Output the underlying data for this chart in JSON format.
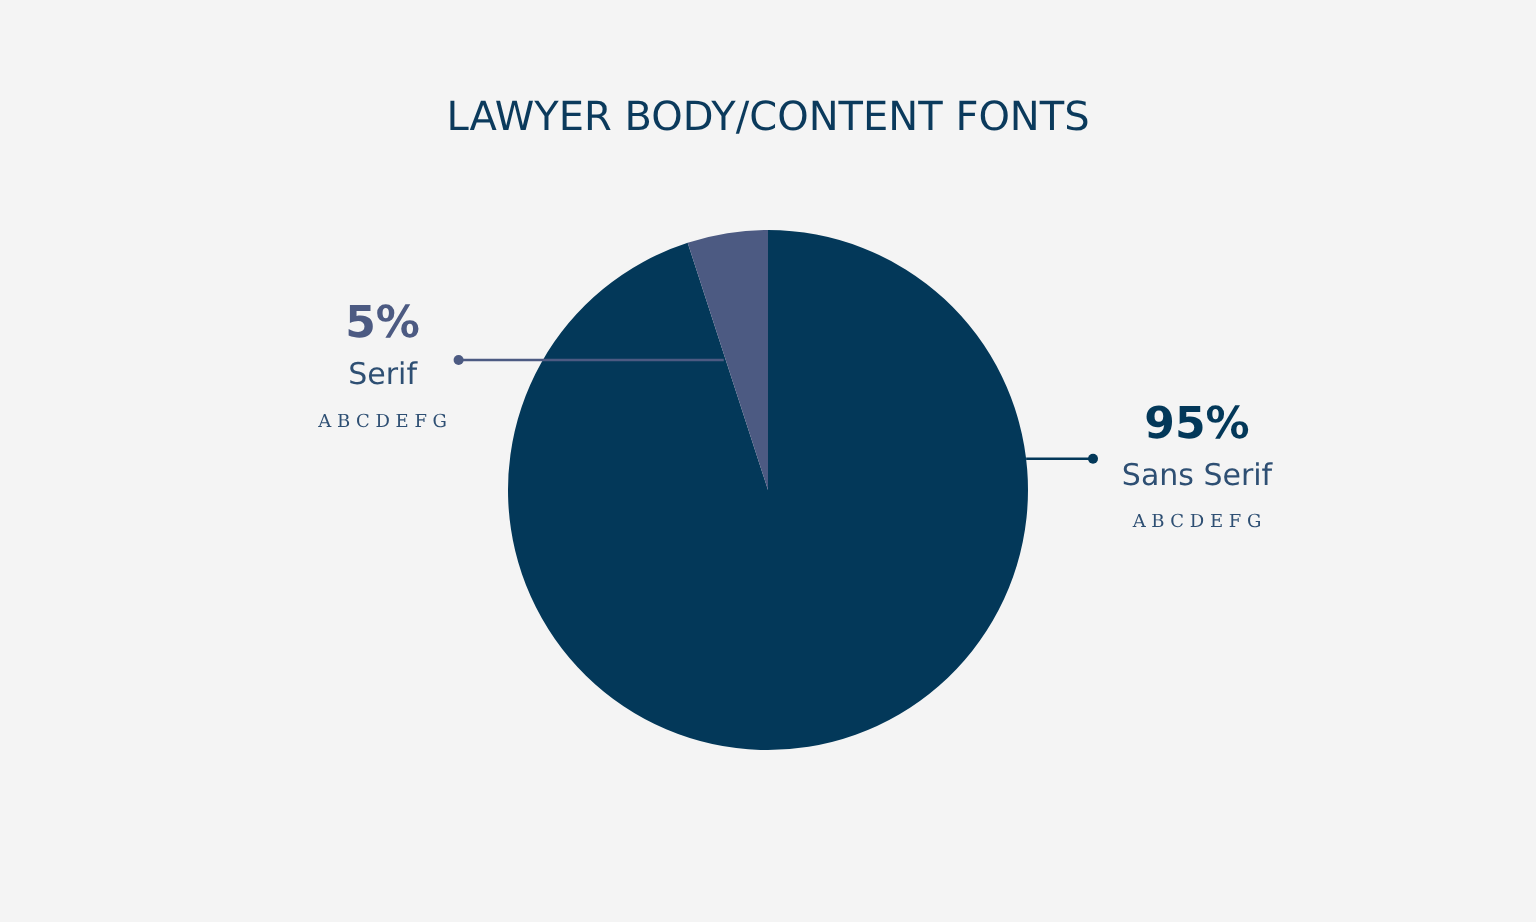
{
  "chart_data": {
    "type": "pie",
    "title": "LAWYER BODY/CONTENT FONTS",
    "categories": [
      "Sans Serif",
      "Serif"
    ],
    "values": [
      95,
      5
    ],
    "value_labels": [
      "95%",
      "5%"
    ],
    "colors": [
      "#033859",
      "#4c5a82"
    ],
    "annotations": [
      {
        "text": "A B C D E F G",
        "x": "Sans Serif"
      },
      {
        "text": "A B C D E F G",
        "x": "Serif"
      }
    ]
  }
}
